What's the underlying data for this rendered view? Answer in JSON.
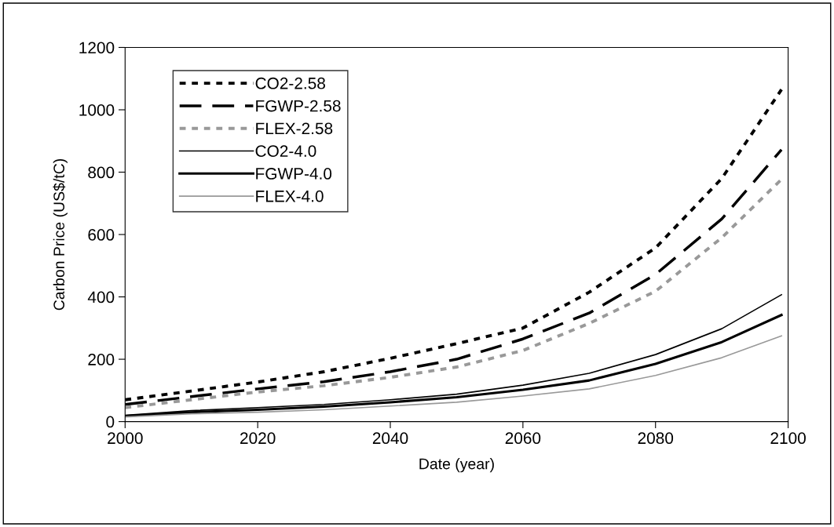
{
  "chart_data": {
    "type": "line",
    "xlabel": "Date (year)",
    "ylabel": "Carbon Price (US$/tC)",
    "x": [
      2000,
      2010,
      2020,
      2030,
      2040,
      2050,
      2060,
      2070,
      2080,
      2090,
      2099
    ],
    "xlim": [
      2000,
      2100
    ],
    "xticks": [
      2000,
      2020,
      2040,
      2060,
      2080,
      2100
    ],
    "ylim": [
      0,
      1200
    ],
    "yticks": [
      0,
      200,
      400,
      600,
      800,
      1000,
      1200
    ],
    "grid": false,
    "legend": "top left",
    "marker": "none",
    "series": [
      {
        "name": "CO2-2.58",
        "color": "#000000",
        "line_style": "dotted",
        "values": [
          70,
          98,
          127,
          160,
          203,
          250,
          300,
          415,
          557,
          780,
          1065
        ]
      },
      {
        "name": "FGWP-2.58",
        "color": "#000000",
        "line_style": "dashed",
        "values": [
          55,
          80,
          105,
          128,
          160,
          200,
          265,
          348,
          472,
          650,
          872
        ]
      },
      {
        "name": "FLEX-2.58",
        "color": "#999999",
        "line_style": "dotted",
        "values": [
          45,
          70,
          95,
          115,
          142,
          175,
          228,
          315,
          418,
          590,
          777
        ]
      },
      {
        "name": "CO2-4.0",
        "color": "#000000",
        "line_style": "solid",
        "values": [
          20,
          35,
          45,
          55,
          70,
          88,
          117,
          155,
          215,
          298,
          407
        ]
      },
      {
        "name": "FGWP-4.0",
        "color": "#000000",
        "line_style": "solid",
        "values": [
          18,
          30,
          38,
          48,
          62,
          78,
          102,
          132,
          185,
          255,
          342
        ]
      },
      {
        "name": "FLEX-4.0",
        "color": "#999999",
        "line_style": "solid",
        "values": [
          15,
          25,
          30,
          38,
          50,
          62,
          82,
          105,
          148,
          205,
          275
        ]
      }
    ]
  }
}
